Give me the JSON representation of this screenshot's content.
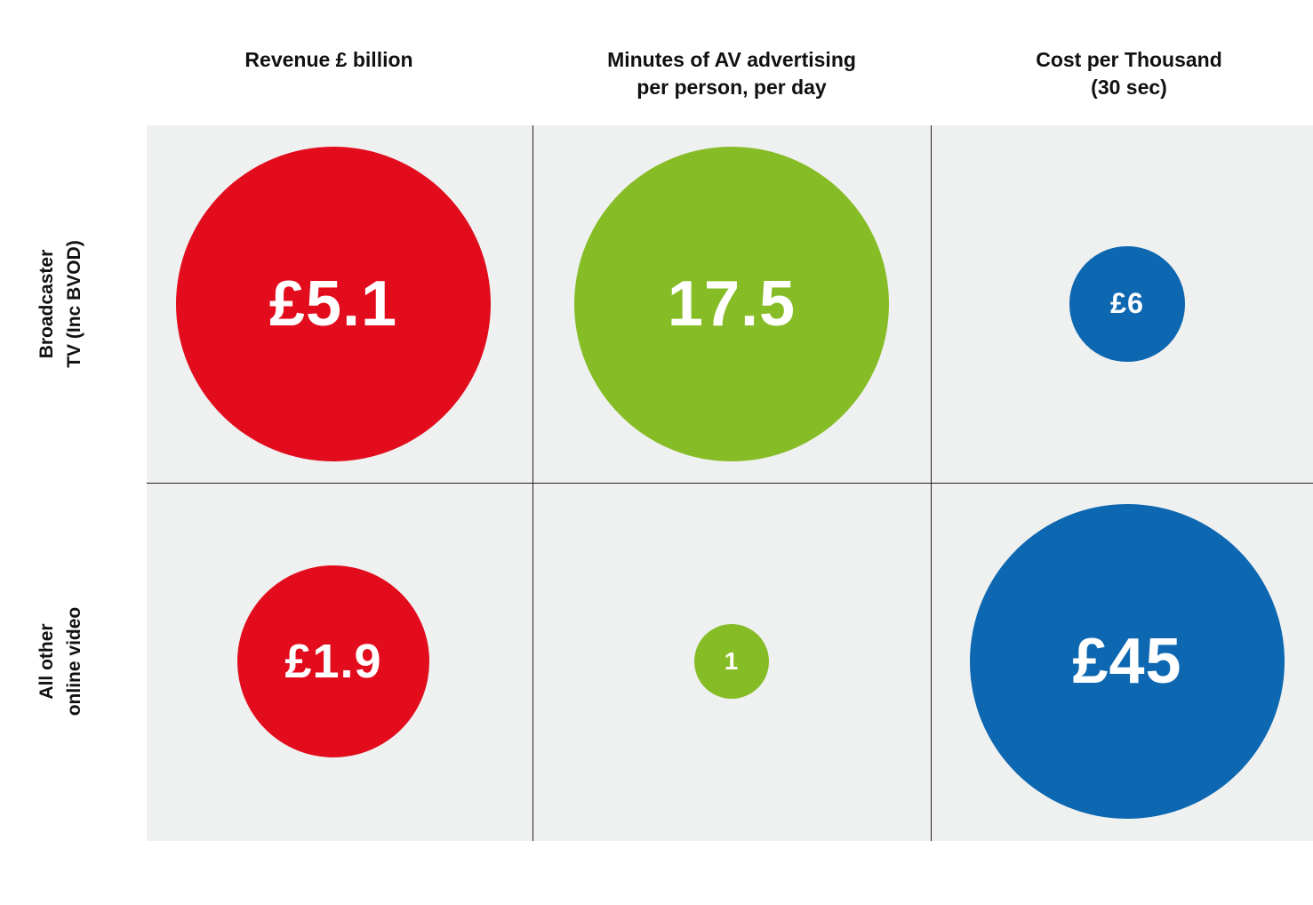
{
  "chart_data": {
    "type": "bubble-matrix",
    "columns": [
      {
        "label": "Revenue £ billion",
        "color": "#e20c1c"
      },
      {
        "label": "Minutes of AV advertising\nper person, per day",
        "color": "#86bc25"
      },
      {
        "label": "Cost per Thousand\n(30 sec)",
        "color": "#0d67b1"
      }
    ],
    "rows": [
      {
        "label": "Broadcaster\nTV (Inc BVOD)",
        "values": [
          5.1,
          17.5,
          6
        ],
        "value_labels": [
          "£5.1",
          "17.5",
          "£6"
        ]
      },
      {
        "label": "All other\nonline video",
        "values": [
          1.9,
          1,
          45
        ],
        "value_labels": [
          "£1.9",
          "1",
          "£45"
        ]
      }
    ]
  }
}
